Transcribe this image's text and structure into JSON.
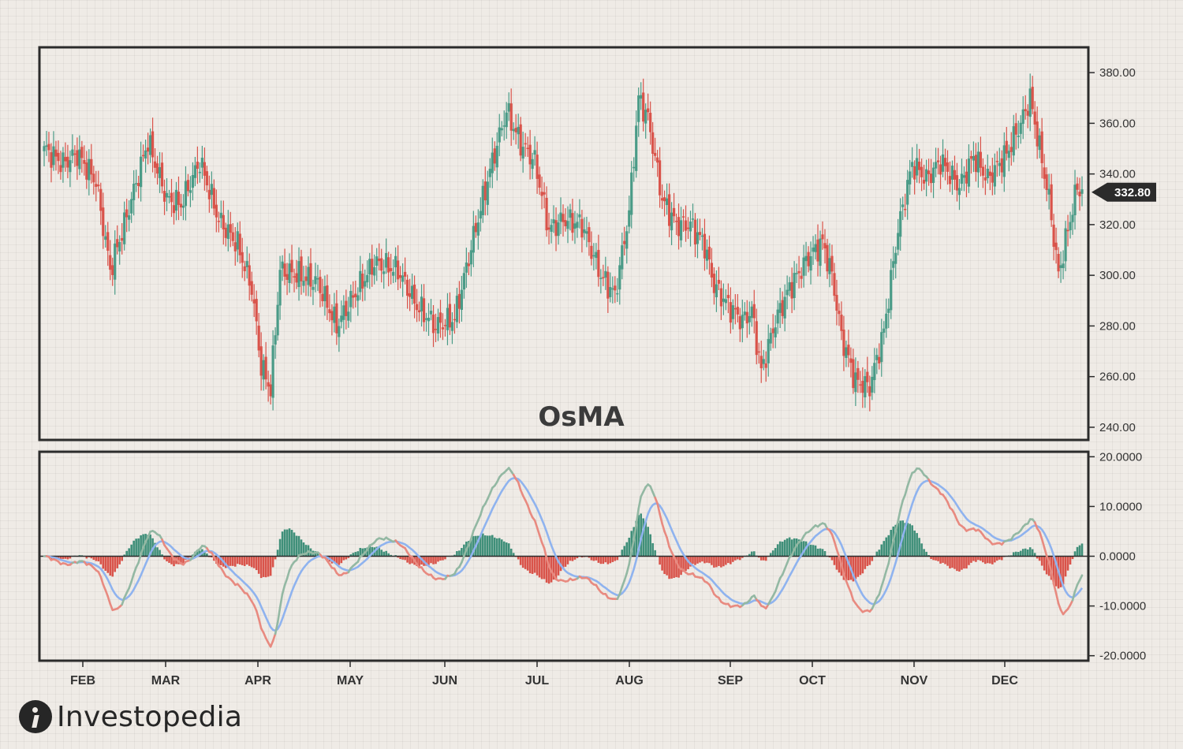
{
  "chart_data": {
    "type": "candlestick",
    "title": "OsMA",
    "months": [
      "FEB",
      "MAR",
      "APR",
      "MAY",
      "JUN",
      "JUL",
      "AUG",
      "SEP",
      "OCT",
      "NOV",
      "DEC"
    ],
    "last_price_label": "332.80",
    "price_panel": {
      "ylim": [
        235,
        390
      ],
      "yticks": [
        {
          "value": 380,
          "label": "380.00"
        },
        {
          "value": 360,
          "label": "360.00"
        },
        {
          "value": 340,
          "label": "340.00"
        },
        {
          "value": 320,
          "label": "320.00"
        },
        {
          "value": 300,
          "label": "300.00"
        },
        {
          "value": 280,
          "label": "280.00"
        },
        {
          "value": 260,
          "label": "260.00"
        },
        {
          "value": 240,
          "label": "240.00"
        }
      ],
      "close_anchors": [
        [
          0,
          350
        ],
        [
          8,
          344
        ],
        [
          14,
          348
        ],
        [
          22,
          337
        ],
        [
          28,
          302
        ],
        [
          34,
          320
        ],
        [
          44,
          353
        ],
        [
          52,
          330
        ],
        [
          58,
          328
        ],
        [
          66,
          345
        ],
        [
          74,
          322
        ],
        [
          82,
          312
        ],
        [
          88,
          295
        ],
        [
          92,
          264
        ],
        [
          96,
          255
        ],
        [
          100,
          302
        ],
        [
          108,
          300
        ],
        [
          116,
          297
        ],
        [
          124,
          280
        ],
        [
          132,
          293
        ],
        [
          140,
          305
        ],
        [
          150,
          302
        ],
        [
          158,
          288
        ],
        [
          166,
          280
        ],
        [
          174,
          283
        ],
        [
          182,
          315
        ],
        [
          190,
          345
        ],
        [
          196,
          365
        ],
        [
          202,
          352
        ],
        [
          208,
          345
        ],
        [
          214,
          318
        ],
        [
          220,
          322
        ],
        [
          228,
          320
        ],
        [
          236,
          300
        ],
        [
          242,
          292
        ],
        [
          248,
          325
        ],
        [
          252,
          370
        ],
        [
          256,
          362
        ],
        [
          262,
          330
        ],
        [
          268,
          320
        ],
        [
          274,
          320
        ],
        [
          280,
          312
        ],
        [
          284,
          296
        ],
        [
          290,
          288
        ],
        [
          296,
          282
        ],
        [
          300,
          286
        ],
        [
          304,
          262
        ],
        [
          310,
          282
        ],
        [
          316,
          295
        ],
        [
          324,
          307
        ],
        [
          330,
          313
        ],
        [
          334,
          300
        ],
        [
          338,
          276
        ],
        [
          344,
          258
        ],
        [
          350,
          256
        ],
        [
          356,
          278
        ],
        [
          362,
          318
        ],
        [
          368,
          344
        ],
        [
          374,
          338
        ],
        [
          380,
          345
        ],
        [
          388,
          335
        ],
        [
          394,
          347
        ],
        [
          400,
          338
        ],
        [
          408,
          348
        ],
        [
          414,
          360
        ],
        [
          418,
          370
        ],
        [
          422,
          350
        ],
        [
          426,
          330
        ],
        [
          430,
          300
        ],
        [
          434,
          318
        ],
        [
          438,
          335
        ],
        [
          440,
          333
        ]
      ],
      "candle_count": 441
    },
    "osma_panel": {
      "ylim": [
        -21,
        21
      ],
      "yticks": [
        {
          "value": 20,
          "label": "20.0000"
        },
        {
          "value": 10,
          "label": "10.0000"
        },
        {
          "value": 0,
          "label": "0.0000"
        },
        {
          "value": -10,
          "label": "-10.0000"
        },
        {
          "value": -20,
          "label": "-20.0000"
        }
      ],
      "series": [
        {
          "role": "macd",
          "color_up": "#93b8a3",
          "color_down": "#e88a80"
        },
        {
          "role": "signal",
          "color": "#8fb3ef"
        },
        {
          "role": "histogram",
          "color_up": "#3f8f79",
          "color_down": "#d9534a"
        }
      ]
    }
  },
  "colors": {
    "candle_up": "#4a9b87",
    "candle_down": "#d9534a",
    "frame": "#2b2b2b",
    "price_tag": "#2b2b2b"
  },
  "logo": {
    "text": "Investopedia",
    "icon": "investopedia-logo-icon"
  }
}
